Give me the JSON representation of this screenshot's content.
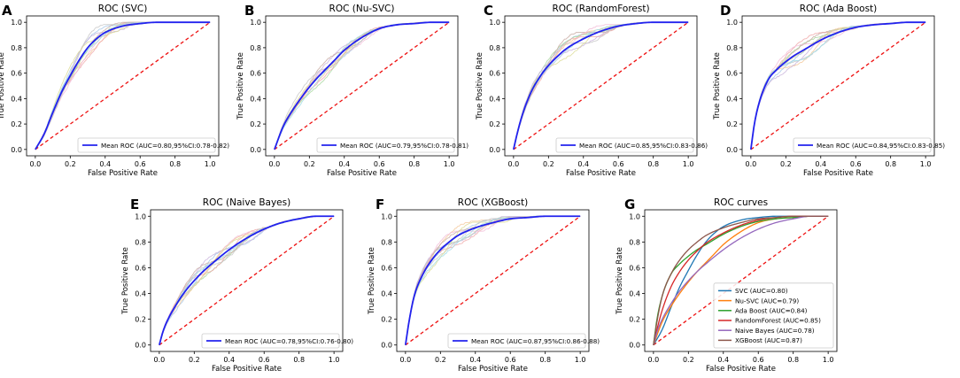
{
  "axis_labels": {
    "x": "False Positive Rate",
    "y": "True Positive Rate"
  },
  "colors": {
    "mean_curve": "#2222ee",
    "chance_line": "#ee1111",
    "fold_palette": [
      "#a6c8e8",
      "#f5c89a",
      "#a8d8a0",
      "#f0a8a8",
      "#c9b4dc",
      "#c8aaa2",
      "#f2bcd8",
      "#c8c8c8",
      "#dcdc96",
      "#a0dce6"
    ]
  },
  "chart_data": [
    {
      "type": "line",
      "panel": "A",
      "title": "ROC (SVC)",
      "xlabel": "False Positive Rate",
      "ylabel": "True Positive Rate",
      "xlim": [
        -0.05,
        1.05
      ],
      "ylim": [
        -0.05,
        1.05
      ],
      "xticks": [
        "0.0",
        "0.2",
        "0.4",
        "0.6",
        "0.8",
        "1.0"
      ],
      "yticks": [
        "0.0",
        "0.2",
        "0.4",
        "0.6",
        "0.8",
        "1.0"
      ],
      "legend": "Mean ROC (AUC=0.80,95%CI:0.78-0.82)",
      "auc": 0.8,
      "legend_position": "lower right",
      "mean_roc": {
        "x": [
          0,
          0.05,
          0.1,
          0.15,
          0.2,
          0.25,
          0.3,
          0.35,
          0.4,
          0.5,
          0.6,
          0.7,
          0.8,
          0.9,
          1.0
        ],
        "y": [
          0,
          0.12,
          0.29,
          0.45,
          0.58,
          0.7,
          0.8,
          0.87,
          0.92,
          0.97,
          0.99,
          1.0,
          1.0,
          1.0,
          1.0
        ]
      }
    },
    {
      "type": "line",
      "panel": "B",
      "title": "ROC (Nu-SVC)",
      "xlabel": "False Positive Rate",
      "ylabel": "True Positive Rate",
      "xlim": [
        -0.05,
        1.05
      ],
      "ylim": [
        -0.05,
        1.05
      ],
      "xticks": [
        "0.0",
        "0.2",
        "0.4",
        "0.6",
        "0.8",
        "1.0"
      ],
      "yticks": [
        "0.0",
        "0.2",
        "0.4",
        "0.6",
        "0.8",
        "1.0"
      ],
      "legend": "Mean ROC (AUC=0.79,95%CI:0.78-0.81)",
      "auc": 0.79,
      "legend_position": "lower right",
      "mean_roc": {
        "x": [
          0,
          0.05,
          0.1,
          0.15,
          0.2,
          0.25,
          0.3,
          0.35,
          0.4,
          0.5,
          0.6,
          0.7,
          0.8,
          0.9,
          1.0
        ],
        "y": [
          0,
          0.18,
          0.3,
          0.4,
          0.49,
          0.57,
          0.64,
          0.71,
          0.78,
          0.88,
          0.95,
          0.98,
          0.99,
          1.0,
          1.0
        ]
      }
    },
    {
      "type": "line",
      "panel": "C",
      "title": "ROC (RandomForest)",
      "xlabel": "False Positive Rate",
      "ylabel": "True Positive Rate",
      "xlim": [
        -0.05,
        1.05
      ],
      "ylim": [
        -0.05,
        1.05
      ],
      "xticks": [
        "0.0",
        "0.2",
        "0.4",
        "0.6",
        "0.8",
        "1.0"
      ],
      "yticks": [
        "0.0",
        "0.2",
        "0.4",
        "0.6",
        "0.8",
        "1.0"
      ],
      "legend": "Mean ROC (AUC=0.85,95%CI:0.83-0.86)",
      "auc": 0.85,
      "legend_position": "lower right",
      "mean_roc": {
        "x": [
          0,
          0.02,
          0.05,
          0.1,
          0.15,
          0.2,
          0.25,
          0.3,
          0.4,
          0.5,
          0.6,
          0.7,
          0.8,
          0.9,
          1.0
        ],
        "y": [
          0,
          0.12,
          0.27,
          0.45,
          0.57,
          0.66,
          0.73,
          0.79,
          0.87,
          0.93,
          0.97,
          0.99,
          1.0,
          1.0,
          1.0
        ]
      }
    },
    {
      "type": "line",
      "panel": "D",
      "title": "ROC (Ada Boost)",
      "xlabel": "False Positive Rate",
      "ylabel": "True Positive Rate",
      "xlim": [
        -0.05,
        1.05
      ],
      "ylim": [
        -0.05,
        1.05
      ],
      "xticks": [
        "0.0",
        "0.2",
        "0.4",
        "0.6",
        "0.8",
        "1.0"
      ],
      "yticks": [
        "0.0",
        "0.2",
        "0.4",
        "0.6",
        "0.8",
        "1.0"
      ],
      "legend": "Mean ROC (AUC=0.84,95%CI:0.83-0.85)",
      "auc": 0.84,
      "legend_position": "lower right",
      "mean_roc": {
        "x": [
          0,
          0.02,
          0.05,
          0.1,
          0.15,
          0.2,
          0.25,
          0.3,
          0.4,
          0.5,
          0.6,
          0.7,
          0.8,
          0.9,
          1.0
        ],
        "y": [
          0,
          0.2,
          0.38,
          0.55,
          0.63,
          0.69,
          0.74,
          0.78,
          0.86,
          0.92,
          0.96,
          0.98,
          0.99,
          1.0,
          1.0
        ]
      }
    },
    {
      "type": "line",
      "panel": "E",
      "title": "ROC (Naive Bayes)",
      "xlabel": "False Positive Rate",
      "ylabel": "True Positive Rate",
      "xlim": [
        -0.05,
        1.05
      ],
      "ylim": [
        -0.05,
        1.05
      ],
      "xticks": [
        "0.0",
        "0.2",
        "0.4",
        "0.6",
        "0.8",
        "1.0"
      ],
      "yticks": [
        "0.0",
        "0.2",
        "0.4",
        "0.6",
        "0.8",
        "1.0"
      ],
      "legend": "Mean ROC (AUC=0.78,95%CI:0.76-0.80)",
      "auc": 0.78,
      "legend_position": "lower right",
      "mean_roc": {
        "x": [
          0,
          0.02,
          0.05,
          0.1,
          0.15,
          0.2,
          0.25,
          0.3,
          0.4,
          0.5,
          0.6,
          0.7,
          0.8,
          0.9,
          1.0
        ],
        "y": [
          0,
          0.1,
          0.2,
          0.32,
          0.42,
          0.5,
          0.57,
          0.63,
          0.74,
          0.83,
          0.9,
          0.95,
          0.98,
          1.0,
          1.0
        ]
      }
    },
    {
      "type": "line",
      "panel": "F",
      "title": "ROC (XGBoost)",
      "xlabel": "False Positive Rate",
      "ylabel": "True Positive Rate",
      "xlim": [
        -0.05,
        1.05
      ],
      "ylim": [
        -0.05,
        1.05
      ],
      "xticks": [
        "0.0",
        "0.2",
        "0.4",
        "0.6",
        "0.8",
        "1.0"
      ],
      "yticks": [
        "0.0",
        "0.2",
        "0.4",
        "0.6",
        "0.8",
        "1.0"
      ],
      "legend": "Mean ROC (AUC=0.87,95%CI:0.86-0.88)",
      "auc": 0.87,
      "legend_position": "lower right",
      "mean_roc": {
        "x": [
          0,
          0.02,
          0.05,
          0.1,
          0.15,
          0.2,
          0.25,
          0.3,
          0.4,
          0.5,
          0.6,
          0.7,
          0.8,
          0.9,
          1.0
        ],
        "y": [
          0,
          0.18,
          0.38,
          0.55,
          0.66,
          0.74,
          0.8,
          0.85,
          0.91,
          0.95,
          0.98,
          0.99,
          1.0,
          1.0,
          1.0
        ]
      }
    },
    {
      "type": "line",
      "panel": "G",
      "title": "ROC curves",
      "xlabel": "False Positive Rate",
      "ylabel": "True Positive Rate",
      "xlim": [
        -0.05,
        1.05
      ],
      "ylim": [
        -0.05,
        1.05
      ],
      "xticks": [
        "0.0",
        "0.2",
        "0.4",
        "0.6",
        "0.8",
        "1.0"
      ],
      "yticks": [
        "0.0",
        "0.2",
        "0.4",
        "0.6",
        "0.8",
        "1.0"
      ],
      "legend_position": "lower right",
      "series": [
        {
          "name": "SVC (AUC=0.80)",
          "color": "#1f77b4",
          "x": [
            0,
            0.05,
            0.1,
            0.15,
            0.2,
            0.25,
            0.3,
            0.35,
            0.4,
            0.5,
            0.6,
            0.7,
            0.8,
            0.9,
            1.0
          ],
          "y": [
            0,
            0.12,
            0.29,
            0.45,
            0.58,
            0.7,
            0.8,
            0.87,
            0.92,
            0.97,
            0.99,
            1.0,
            1.0,
            1.0,
            1.0
          ]
        },
        {
          "name": "Nu-SVC (AUC=0.79)",
          "color": "#ff7f0e",
          "x": [
            0,
            0.05,
            0.1,
            0.15,
            0.2,
            0.25,
            0.3,
            0.35,
            0.4,
            0.5,
            0.6,
            0.7,
            0.8,
            0.9,
            1.0
          ],
          "y": [
            0,
            0.18,
            0.3,
            0.4,
            0.49,
            0.57,
            0.64,
            0.71,
            0.78,
            0.88,
            0.95,
            0.98,
            0.99,
            1.0,
            1.0
          ]
        },
        {
          "name": "Ada Boost (AUC=0.84)",
          "color": "#2ca02c",
          "x": [
            0,
            0.02,
            0.05,
            0.1,
            0.15,
            0.2,
            0.25,
            0.3,
            0.4,
            0.5,
            0.6,
            0.7,
            0.8,
            0.9,
            1.0
          ],
          "y": [
            0,
            0.2,
            0.38,
            0.55,
            0.63,
            0.69,
            0.74,
            0.78,
            0.86,
            0.92,
            0.96,
            0.98,
            0.99,
            1.0,
            1.0
          ]
        },
        {
          "name": "RandomForest (AUC=0.85)",
          "color": "#d62728",
          "x": [
            0,
            0.02,
            0.05,
            0.1,
            0.15,
            0.2,
            0.25,
            0.3,
            0.4,
            0.5,
            0.6,
            0.7,
            0.8,
            0.9,
            1.0
          ],
          "y": [
            0,
            0.12,
            0.27,
            0.45,
            0.57,
            0.66,
            0.73,
            0.79,
            0.87,
            0.93,
            0.97,
            0.99,
            1.0,
            1.0,
            1.0
          ]
        },
        {
          "name": "Naive Bayes (AUC=0.78)",
          "color": "#9467bd",
          "x": [
            0,
            0.02,
            0.05,
            0.1,
            0.15,
            0.2,
            0.25,
            0.3,
            0.4,
            0.5,
            0.6,
            0.7,
            0.8,
            0.9,
            1.0
          ],
          "y": [
            0,
            0.1,
            0.2,
            0.32,
            0.42,
            0.5,
            0.57,
            0.63,
            0.74,
            0.83,
            0.9,
            0.95,
            0.98,
            1.0,
            1.0
          ]
        },
        {
          "name": "XGBoost (AUC=0.87)",
          "color": "#8c564b",
          "x": [
            0,
            0.02,
            0.05,
            0.1,
            0.15,
            0.2,
            0.25,
            0.3,
            0.4,
            0.5,
            0.6,
            0.7,
            0.8,
            0.9,
            1.0
          ],
          "y": [
            0,
            0.18,
            0.38,
            0.55,
            0.66,
            0.74,
            0.8,
            0.85,
            0.91,
            0.95,
            0.98,
            0.99,
            1.0,
            1.0,
            1.0
          ]
        }
      ]
    }
  ]
}
